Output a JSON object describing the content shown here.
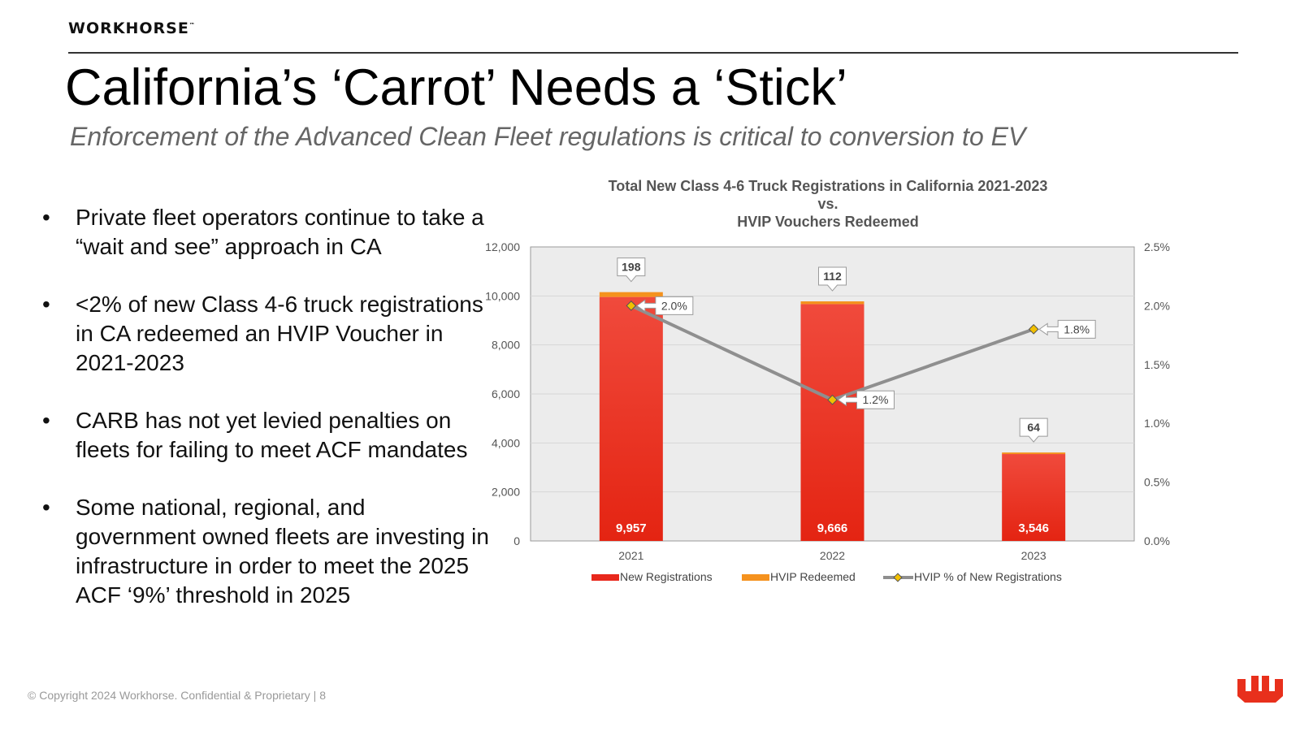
{
  "brand": "WORKHORSE",
  "brand_mark": "™",
  "title": "California’s ‘Carrot’ Needs a ‘Stick’",
  "subtitle": "Enforcement of the Advanced Clean Fleet regulations is critical to conversion to EV",
  "bullets": [
    "Private fleet operators continue to take a “wait and see” approach in CA",
    "<2% of new Class 4-6 truck registrations in CA redeemed an HVIP Voucher in 2021-2023",
    "CARB has not yet levied penalties on fleets for failing to meet ACF mandates",
    "Some national, regional, and government owned fleets are investing in infrastructure in order to meet the 2025 ACF ‘9%’ threshold in 2025"
  ],
  "bullet_glyph": "•",
  "footer": "© Copyright 2024 Workhorse. Confidential & Proprietary   |   8",
  "colors": {
    "new_registrations": "#e8281c",
    "hvip_redeemed": "#f5921e",
    "hvip_pct_line": "#8f8f8f",
    "marker": "#f2c000",
    "plot_bg": "#ececec",
    "logo": "#e8301c"
  },
  "logo_icon": "workhorse-logo-icon",
  "chart_data": {
    "type": "bar",
    "stacked": true,
    "title_lines": [
      "Total New Class 4-6 Truck Registrations in California 2021-2023",
      "vs.",
      "HVIP Vouchers Redeemed"
    ],
    "categories": [
      "2021",
      "2022",
      "2023"
    ],
    "series": [
      {
        "name": "New Registrations",
        "type": "bar",
        "axis": "left",
        "values": [
          9957,
          9666,
          3546
        ],
        "labels": [
          "9,957",
          "9,666",
          "3,546"
        ]
      },
      {
        "name": "HVIP Redeemed",
        "type": "bar",
        "axis": "left",
        "values": [
          198,
          112,
          64
        ],
        "labels": [
          "198",
          "112",
          "64"
        ]
      },
      {
        "name": "HVIP % of New Registrations",
        "type": "line",
        "axis": "right",
        "values": [
          2.0,
          1.2,
          1.8
        ],
        "labels": [
          "2.0%",
          "1.2%",
          "1.8%"
        ]
      }
    ],
    "y_left": {
      "min": 0,
      "max": 12000,
      "ticks": [
        0,
        2000,
        4000,
        6000,
        8000,
        10000,
        12000
      ],
      "tick_labels": [
        "0",
        "2,000",
        "4,000",
        "6,000",
        "8,000",
        "10,000",
        "12,000"
      ]
    },
    "y_right": {
      "min": 0,
      "max": 2.5,
      "ticks": [
        0,
        0.5,
        1.0,
        1.5,
        2.0,
        2.5
      ],
      "tick_labels": [
        "0.0%",
        "0.5%",
        "1.0%",
        "1.5%",
        "2.0%",
        "2.5%"
      ]
    },
    "grid": true,
    "legend": "bottom"
  }
}
